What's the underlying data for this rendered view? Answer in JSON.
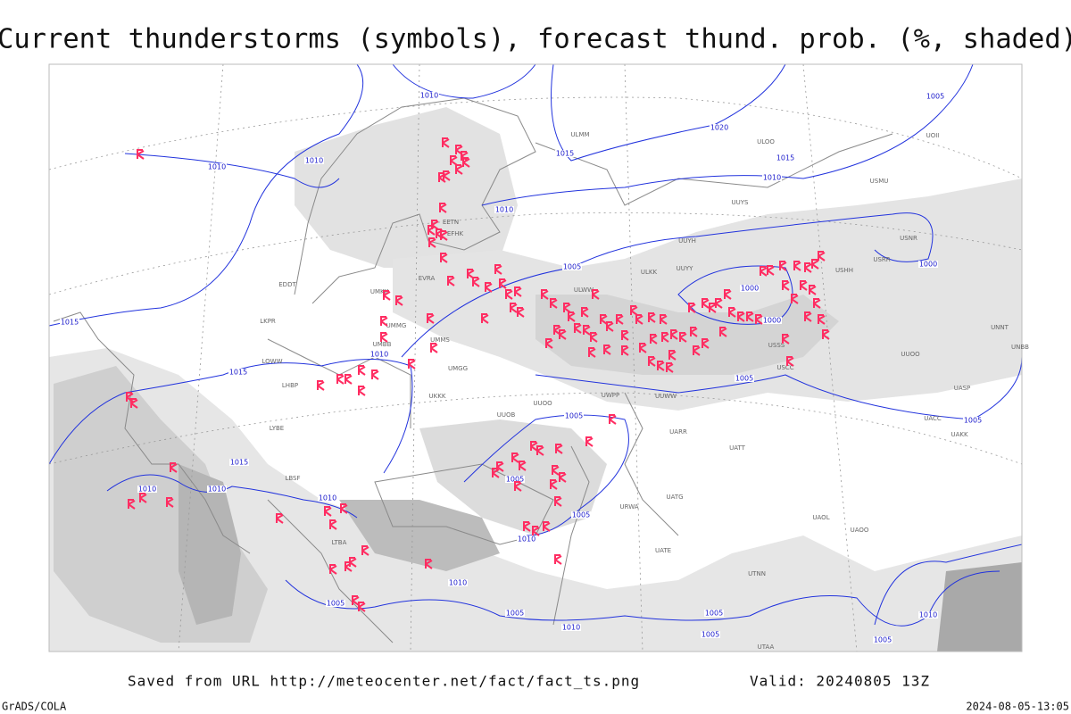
{
  "header": {
    "title": "Current thunderstorms (symbols), forecast thund. prob. (%, shaded)"
  },
  "footer": {
    "source": "Saved from URL http://meteocenter.net/fact/fact_ts.png",
    "valid": "Valid: 20240805 13Z",
    "software": "GrADS/COLA",
    "timestamp": "2024-08-05-13:05"
  },
  "isobar_labels": [
    "1010",
    "1010",
    "1010",
    "1015",
    "1020",
    "1015",
    "1010",
    "1010",
    "1005",
    "1000",
    "1000",
    "1000",
    "1005",
    "1015",
    "1015",
    "1010",
    "1005",
    "1005",
    "1005",
    "1015",
    "1010",
    "1010",
    "1010",
    "1005",
    "1005",
    "1010",
    "1010",
    "1005",
    "1005",
    "1005",
    "1005",
    "1010",
    "1005",
    "1010"
  ],
  "station_labels": [
    "ULMM",
    "ULOO",
    "UOII",
    "USMU",
    "UUYS",
    "UUYH",
    "ULKK",
    "UUYY",
    "USHH",
    "USRR",
    "USNR",
    "UNNT",
    "UNBB",
    "ULWW",
    "USSS",
    "USCC",
    "UUOO",
    "UUWW",
    "UMMS",
    "UMGG",
    "UKKK",
    "UUOO",
    "UUOB",
    "UWPP",
    "UARR",
    "UATT",
    "UAKK",
    "UACC",
    "UASP",
    "UATG",
    "UAOL",
    "UAOO",
    "UATE",
    "UTNN",
    "UTAA",
    "URWA",
    "UMKK",
    "EVRA",
    "UMMG",
    "UMBB",
    "LKPR",
    "LOWW",
    "LHBP",
    "LYBE",
    "LBSF",
    "LTBA",
    "EDDT",
    "EETN",
    "EFHK"
  ]
}
